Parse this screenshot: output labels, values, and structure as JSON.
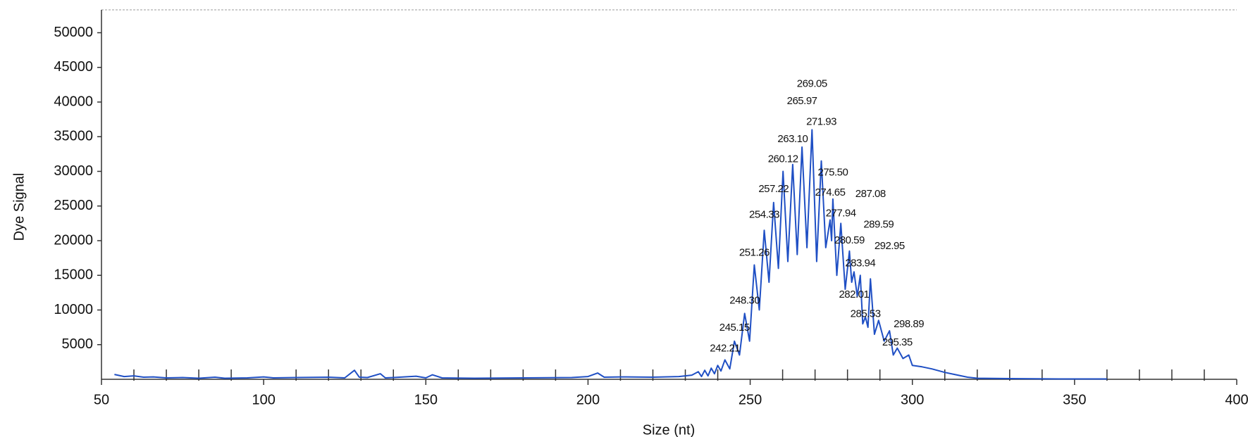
{
  "chart_data": {
    "type": "line",
    "xlabel": "Size (nt)",
    "ylabel": "Dye Signal",
    "color": "#1f4fc4",
    "xlim": [
      50,
      400
    ],
    "ylim": [
      0,
      53300
    ],
    "xticks": [
      50,
      100,
      150,
      200,
      250,
      300,
      350,
      400
    ],
    "xminorticks": [
      60,
      70,
      80,
      90,
      110,
      120,
      130,
      140,
      160,
      170,
      180,
      190,
      210,
      220,
      230,
      240,
      260,
      270,
      280,
      290,
      310,
      320,
      330,
      340,
      360,
      370,
      380,
      390
    ],
    "yticks": [
      5000,
      10000,
      15000,
      20000,
      25000,
      30000,
      35000,
      40000,
      45000,
      50000
    ],
    "x": [
      54,
      57,
      60,
      63,
      66,
      70,
      75,
      80,
      85,
      88,
      95,
      100,
      103,
      110,
      120,
      125,
      128,
      129.5,
      132,
      136,
      137.5,
      140,
      147,
      150,
      152,
      155,
      165,
      180,
      195,
      200,
      203,
      205,
      210,
      220,
      228,
      232,
      234,
      235,
      236,
      237,
      238,
      239,
      240,
      241,
      242.21,
      243.7,
      245.15,
      246.7,
      248.3,
      249.8,
      251.26,
      252.8,
      254.33,
      255.8,
      257.22,
      258.7,
      260.12,
      261.6,
      263.1,
      264.5,
      265.97,
      267.5,
      269.05,
      270.5,
      271.93,
      273.3,
      274.65,
      275.1,
      275.5,
      276.7,
      277.94,
      279.3,
      280.59,
      281.3,
      282.01,
      283,
      283.94,
      284.7,
      285.53,
      286.3,
      287.08,
      288.3,
      289.59,
      291.3,
      292.95,
      294.1,
      295.35,
      297.1,
      298.89,
      300,
      303,
      306,
      310,
      313,
      317,
      320,
      330,
      345,
      360
    ],
    "values": [
      700,
      400,
      500,
      300,
      350,
      200,
      250,
      150,
      300,
      150,
      200,
      350,
      200,
      250,
      300,
      200,
      1300,
      300,
      250,
      800,
      200,
      250,
      450,
      200,
      650,
      200,
      150,
      200,
      250,
      400,
      900,
      300,
      350,
      300,
      400,
      600,
      1100,
      400,
      1300,
      500,
      1600,
      800,
      2000,
      1200,
      2800,
      1500,
      5500,
      3500,
      9500,
      5500,
      16500,
      10000,
      21500,
      14000,
      25500,
      16000,
      30000,
      17000,
      31000,
      18000,
      33500,
      19000,
      36000,
      17000,
      31500,
      19000,
      23000,
      20000,
      26000,
      15000,
      22500,
      13000,
      18500,
      14000,
      15500,
      12000,
      15000,
      8000,
      9000,
      7500,
      14500,
      6500,
      8500,
      5500,
      7000,
      3500,
      4500,
      3000,
      3500,
      2000,
      1800,
      1500,
      1000,
      700,
      300,
      150,
      100,
      50,
      50
    ],
    "annotations": [
      {
        "text": "269.05",
        "x": 269.05,
        "y": 42600
      },
      {
        "text": "265.97",
        "x": 265.97,
        "y": 40100
      },
      {
        "text": "271.93",
        "x": 271.93,
        "y": 37100
      },
      {
        "text": "263.10",
        "x": 263.1,
        "y": 34600
      },
      {
        "text": "260.12",
        "x": 260.12,
        "y": 31700
      },
      {
        "text": "275.50",
        "x": 275.5,
        "y": 29800
      },
      {
        "text": "257.22",
        "x": 257.22,
        "y": 27400
      },
      {
        "text": "274.65",
        "x": 274.65,
        "y": 26900
      },
      {
        "text": "287.08",
        "x": 287.08,
        "y": 26700
      },
      {
        "text": "254.33",
        "x": 254.33,
        "y": 23700
      },
      {
        "text": "277.94",
        "x": 277.94,
        "y": 23900
      },
      {
        "text": "289.59",
        "x": 289.59,
        "y": 22300
      },
      {
        "text": "280.59",
        "x": 280.59,
        "y": 20000
      },
      {
        "text": "292.95",
        "x": 292.95,
        "y": 19200
      },
      {
        "text": "251.26",
        "x": 251.26,
        "y": 18200
      },
      {
        "text": "283.94",
        "x": 283.94,
        "y": 16700
      },
      {
        "text": "282.01",
        "x": 282.01,
        "y": 12200
      },
      {
        "text": "248.30",
        "x": 248.3,
        "y": 11300
      },
      {
        "text": "285.53",
        "x": 285.53,
        "y": 9400
      },
      {
        "text": "298.89",
        "x": 298.89,
        "y": 7900
      },
      {
        "text": "245.15",
        "x": 245.15,
        "y": 7400
      },
      {
        "text": "295.35",
        "x": 295.35,
        "y": 5300
      },
      {
        "text": "242.21",
        "x": 242.21,
        "y": 4400
      }
    ]
  }
}
